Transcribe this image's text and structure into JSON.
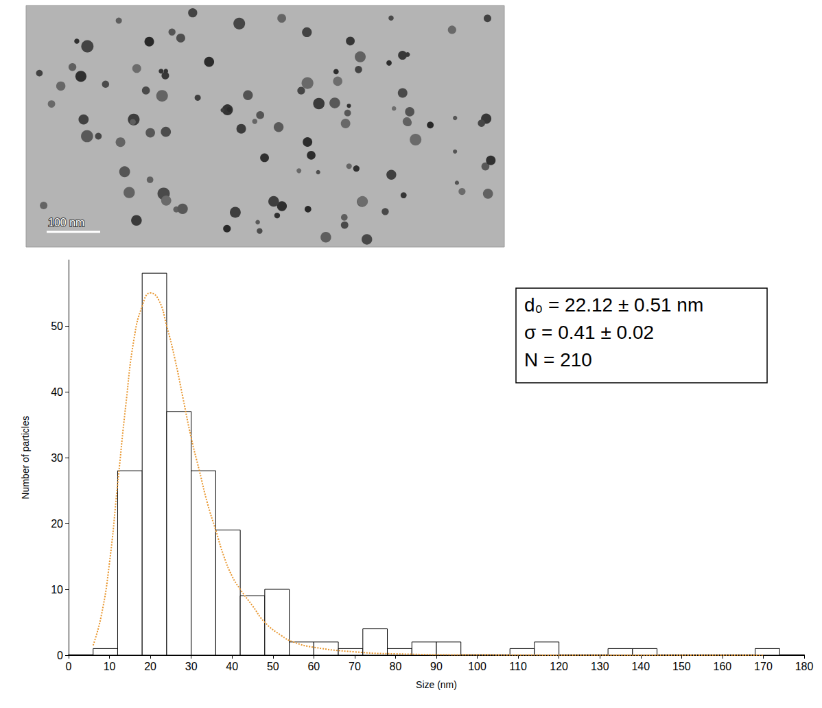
{
  "chart_data": {
    "type": "histogram",
    "x_label": "Size (nm)",
    "y_label": "Number of particles",
    "bins": [
      6,
      12,
      18,
      24,
      30,
      36,
      42,
      48,
      54,
      60,
      66,
      72,
      78,
      84,
      90,
      96,
      102,
      108,
      114,
      120,
      126,
      132,
      138,
      144,
      150,
      156,
      162,
      168,
      174
    ],
    "values": [
      1,
      28,
      58,
      37,
      28,
      19,
      9,
      10,
      2,
      2,
      1,
      4,
      1,
      2,
      2,
      0,
      0,
      1,
      2,
      0,
      0,
      1,
      1,
      0,
      0,
      0,
      0,
      1
    ],
    "color": "#ffffff",
    "fit": {
      "type": "line",
      "color": "#e8962e",
      "line_style": "dotted",
      "x": [
        6,
        8,
        10,
        12,
        14,
        16,
        18,
        20,
        22,
        24,
        26,
        28,
        30,
        32,
        34,
        36,
        38,
        40,
        42,
        45,
        48,
        52,
        55,
        60,
        70,
        80,
        100,
        140,
        170
      ],
      "values": [
        1.5,
        6,
        14,
        26,
        38,
        48,
        53,
        55,
        54,
        50,
        45,
        39,
        33,
        28,
        23,
        19,
        15,
        12,
        10,
        7.5,
        5,
        3,
        2,
        1.2,
        0.5,
        0.2,
        0.05,
        0,
        0
      ]
    },
    "xlim": [
      0,
      180
    ],
    "xticks": [
      0,
      10,
      20,
      30,
      40,
      50,
      60,
      70,
      80,
      90,
      100,
      110,
      120,
      130,
      140,
      150,
      160,
      170,
      180
    ],
    "ylim": [
      0,
      60
    ],
    "yticks": [
      0,
      10,
      20,
      30,
      40,
      50
    ],
    "grid": false,
    "annotations": [
      "d₀ = 22.12 ± 0.51 nm",
      "σ = 0.41 ± 0.02",
      "N = 210"
    ],
    "scale_bar_label": "100 nm"
  }
}
